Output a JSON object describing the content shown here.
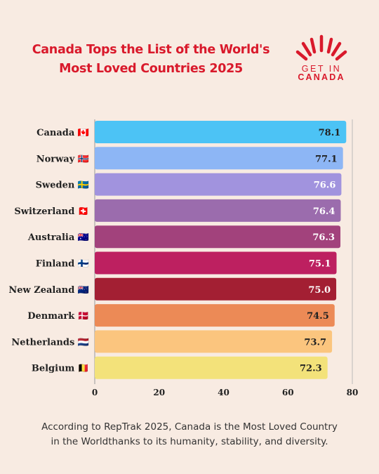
{
  "header": {
    "title_line1": "Canada Tops the List of the World's",
    "title_line2": "Most Loved Countries 2025"
  },
  "logo": {
    "line1": "GET IN",
    "line2": "CANADA",
    "color": "#d9192b"
  },
  "chart_data": {
    "type": "bar",
    "orientation": "horizontal",
    "categories": [
      "Canada",
      "Norway",
      "Sweden",
      "Switzerland",
      "Australia",
      "Finland",
      "New Zealand",
      "Denmark",
      "Netherlands",
      "Belgium"
    ],
    "flags": [
      "🇨🇦",
      "🇳🇴",
      "🇸🇪",
      "🇨🇭",
      "🇦🇺",
      "🇫🇮",
      "🇳🇿",
      "🇩🇰",
      "🇳🇱",
      "🇧🇪"
    ],
    "values": [
      78.1,
      77.1,
      76.6,
      76.4,
      76.3,
      75.1,
      75.0,
      74.5,
      73.7,
      72.3
    ],
    "value_labels": [
      "78.1",
      "77.1",
      "76.6",
      "76.4",
      "76.3",
      "75.1",
      "75.0",
      "74.5",
      "73.7",
      "72.3"
    ],
    "colors": [
      "#4cc3f5",
      "#8db6f5",
      "#a193de",
      "#9b6cad",
      "#a2427c",
      "#bd2060",
      "#a31f33",
      "#ec8a56",
      "#fbc57e",
      "#f3e27a"
    ],
    "value_label_colors": [
      "#222222",
      "#222222",
      "#ffffff",
      "#ffffff",
      "#ffffff",
      "#ffffff",
      "#ffffff",
      "#222222",
      "#222222",
      "#222222"
    ],
    "xticks": [
      "0",
      "20",
      "40",
      "60",
      "80"
    ],
    "xlim": [
      0,
      80
    ],
    "title": "",
    "xlabel": "",
    "ylabel": "",
    "grid": false
  },
  "caption": {
    "line1": "According to RepTrak 2025, Canada is the Most Loved Country",
    "line2": "in the Worldthanks to its humanity, stability, and diversity."
  }
}
